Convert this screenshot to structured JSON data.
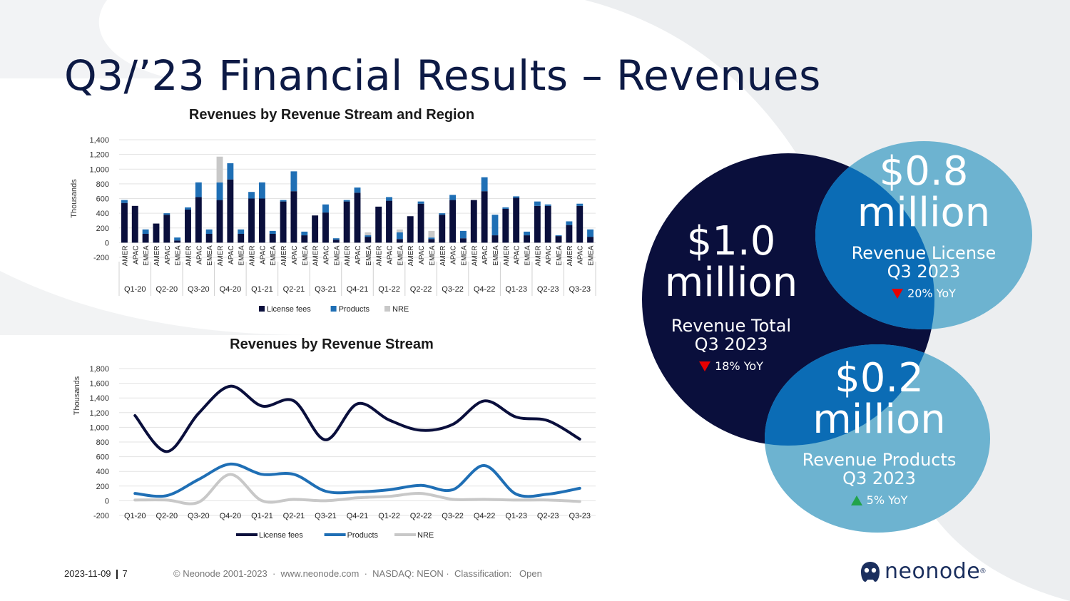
{
  "slide": {
    "title": "Q3/’23 Financial Results – Revenues",
    "footer_date": "2023-11-09",
    "footer_page": "7",
    "footer_copyright": "© Neonode 2001-2023  ·  www.neonode.com  ·  NASDAQ: NEON ·  Classification:   Open",
    "logo_text": "neonode",
    "logo_reg": "®"
  },
  "colors": {
    "navy": "#0a0f3c",
    "blue": "#1f6fb5",
    "light_blue": "#6db3d0",
    "gray": "#c8c8c8",
    "bubble_overlap": "#0b6cb5",
    "title": "#0d1a45"
  },
  "bubbles": {
    "total": {
      "amount": "$1.0",
      "unit": "million",
      "label1": "Revenue Total",
      "label2": "Q3 2023",
      "yoy": "18% YoY",
      "direction": "down"
    },
    "license": {
      "amount": "$0.8",
      "unit": "million",
      "label1": "Revenue License",
      "label2": "Q3 2023",
      "yoy": "20% YoY",
      "direction": "down"
    },
    "products": {
      "amount": "$0.2",
      "unit": "million",
      "label1": "Revenue Products",
      "label2": "Q3 2023",
      "yoy": "5% YoY",
      "direction": "up"
    }
  },
  "chart_data": [
    {
      "type": "bar",
      "stacked": true,
      "title": "Revenues by Revenue Stream and Region",
      "ylabel": "Thousands",
      "ylim": [
        -200,
        1400
      ],
      "yticks": [
        -200,
        0,
        200,
        400,
        600,
        800,
        1000,
        1200,
        1400
      ],
      "ytick_labels": [
        "-200",
        "0",
        "200",
        "400",
        "600",
        "800",
        "1,000",
        "1,200",
        "1,400"
      ],
      "quarters": [
        "Q1-20",
        "Q2-20",
        "Q3-20",
        "Q4-20",
        "Q1-21",
        "Q2-21",
        "Q3-21",
        "Q4-21",
        "Q1-22",
        "Q2-22",
        "Q3-22",
        "Q4-22",
        "Q1-23",
        "Q2-23",
        "Q3-23"
      ],
      "regions": [
        "AMER",
        "APAC",
        "EMEA"
      ],
      "legend": "bottom",
      "series": [
        {
          "name": "License fees",
          "color": "#0a0f3c",
          "values": [
            540,
            500,
            120,
            260,
            380,
            30,
            450,
            620,
            120,
            580,
            860,
            120,
            600,
            600,
            120,
            560,
            700,
            100,
            370,
            410,
            40,
            560,
            680,
            80,
            490,
            570,
            50,
            360,
            530,
            50,
            380,
            580,
            60,
            580,
            700,
            100,
            460,
            610,
            100,
            500,
            500,
            90,
            240,
            500,
            80
          ]
        },
        {
          "name": "Products",
          "color": "#1f6fb5",
          "values": [
            40,
            0,
            60,
            0,
            20,
            40,
            30,
            200,
            60,
            240,
            220,
            60,
            90,
            220,
            40,
            20,
            270,
            50,
            0,
            110,
            20,
            20,
            70,
            20,
            0,
            50,
            90,
            0,
            30,
            20,
            20,
            70,
            100,
            0,
            190,
            280,
            20,
            20,
            50,
            60,
            20,
            10,
            50,
            30,
            100
          ]
        },
        {
          "name": "NRE",
          "color": "#c8c8c8",
          "values": [
            0,
            0,
            0,
            0,
            0,
            0,
            0,
            0,
            0,
            350,
            0,
            0,
            0,
            0,
            0,
            0,
            0,
            0,
            0,
            0,
            0,
            0,
            0,
            40,
            0,
            0,
            40,
            0,
            0,
            90,
            0,
            0,
            0,
            0,
            0,
            0,
            0,
            0,
            0,
            0,
            0,
            0,
            0,
            0,
            0
          ]
        }
      ]
    },
    {
      "type": "line",
      "title": "Revenues by Revenue Stream",
      "ylabel": "Thousands",
      "ylim": [
        -200,
        1800
      ],
      "yticks": [
        -200,
        0,
        200,
        400,
        600,
        800,
        1000,
        1200,
        1400,
        1600,
        1800
      ],
      "ytick_labels": [
        "-200",
        "0",
        "200",
        "400",
        "600",
        "800",
        "1,000",
        "1,200",
        "1,400",
        "1,600",
        "1,800"
      ],
      "categories": [
        "Q1-20",
        "Q2-20",
        "Q3-20",
        "Q4-20",
        "Q1-21",
        "Q2-21",
        "Q3-21",
        "Q4-21",
        "Q1-22",
        "Q2-22",
        "Q3-22",
        "Q4-22",
        "Q1-23",
        "Q2-23",
        "Q3-23"
      ],
      "legend": "bottom",
      "series": [
        {
          "name": "License fees",
          "color": "#0a0f3c",
          "values": [
            1160,
            670,
            1190,
            1560,
            1290,
            1360,
            830,
            1320,
            1100,
            960,
            1040,
            1360,
            1140,
            1090,
            840
          ]
        },
        {
          "name": "Products",
          "color": "#1f6fb5",
          "values": [
            100,
            70,
            290,
            500,
            360,
            360,
            130,
            120,
            150,
            210,
            150,
            480,
            90,
            90,
            170
          ]
        },
        {
          "name": "NRE",
          "color": "#c8c8c8",
          "values": [
            10,
            10,
            -20,
            360,
            0,
            20,
            0,
            40,
            60,
            100,
            20,
            20,
            10,
            10,
            -10
          ]
        }
      ]
    }
  ]
}
